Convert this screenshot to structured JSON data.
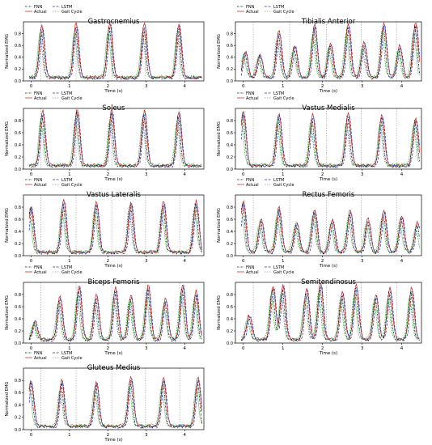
{
  "legend_labels": {
    "fnn": "FNN",
    "lstm": "LSTM",
    "actual": "Actual",
    "gait": "Gait Cycle"
  },
  "colors": {
    "fnn": "#1a1a1a",
    "lstm": "#2a3fa8",
    "actual": "#d0342c",
    "predicted_green": "#3a9a3a",
    "gait": "#9a9a9a",
    "frame": "#000000"
  },
  "chart_data": [
    {
      "type": "line",
      "title": "Gastrocnemius",
      "xlabel": "Time (s)",
      "ylabel": "Normalized EMG",
      "xlim": [
        -0.2,
        4.5
      ],
      "ylim": [
        0,
        1
      ],
      "xticks": [
        0,
        1,
        2,
        3,
        4
      ],
      "yticks": [
        0,
        0.2,
        0.4,
        0.6,
        0.8
      ],
      "gait_cycle_x": [
        0.25,
        1.17,
        2.1,
        2.98,
        3.87
      ],
      "peaks": [
        0.28,
        1.17,
        2.05,
        2.95,
        3.85
      ],
      "peak_heights": [
        0.88,
        0.93,
        0.95,
        0.93,
        0.92
      ],
      "legend": "top-left"
    },
    {
      "type": "line",
      "title": "Tibialis Anterior",
      "xlabel": "Time (s)",
      "ylabel": "Normalized EMG",
      "xlim": [
        -0.2,
        4.5
      ],
      "ylim": [
        0,
        1
      ],
      "xticks": [
        0,
        1,
        2,
        3,
        4
      ],
      "yticks": [
        0,
        0.2,
        0.4,
        0.6,
        0.8
      ],
      "gait_cycle_x": [
        0.25,
        1.17,
        2.1,
        2.98,
        3.87
      ],
      "peaks": [
        0.05,
        0.42,
        0.9,
        1.3,
        1.8,
        2.2,
        2.65,
        3.05,
        3.55,
        3.95,
        4.35
      ],
      "peak_heights": [
        0.45,
        0.4,
        0.8,
        0.55,
        0.9,
        0.6,
        0.92,
        0.6,
        0.95,
        0.55,
        0.95
      ],
      "legend": "top-left"
    },
    {
      "type": "line",
      "title": "Soleus",
      "xlabel": "Time (s)",
      "ylabel": "Normalized EMG",
      "xlim": [
        -0.2,
        4.5
      ],
      "ylim": [
        0,
        1
      ],
      "xticks": [
        0,
        1,
        2,
        3,
        4
      ],
      "yticks": [
        0,
        0.2,
        0.4,
        0.6,
        0.8
      ],
      "gait_cycle_x": [
        0.25,
        1.17,
        2.1,
        2.98,
        3.87
      ],
      "peaks": [
        0.3,
        1.2,
        2.1,
        2.95,
        3.85
      ],
      "peak_heights": [
        0.92,
        0.95,
        0.93,
        0.92,
        0.9
      ],
      "legend": "top-left"
    },
    {
      "type": "line",
      "title": "Vastus Medialis",
      "xlabel": "Time (s)",
      "ylabel": "Normalized EMG",
      "xlim": [
        -0.2,
        4.5
      ],
      "ylim": [
        0,
        1
      ],
      "xticks": [
        0,
        1,
        2,
        3,
        4
      ],
      "yticks": [
        0,
        0.2,
        0.4,
        0.6,
        0.8
      ],
      "gait_cycle_x": [
        0.25,
        1.17,
        2.1,
        2.98,
        3.87
      ],
      "peaks": [
        0.0,
        0.9,
        1.75,
        2.65,
        3.5,
        4.35
      ],
      "peak_heights": [
        0.9,
        0.88,
        0.85,
        0.88,
        0.85,
        0.8
      ],
      "legend": "top-left"
    },
    {
      "type": "line",
      "title": "Vastus Lateralis",
      "xlabel": "Time (s)",
      "ylabel": "Normalized EMG",
      "xlim": [
        -0.2,
        4.5
      ],
      "ylim": [
        0,
        1
      ],
      "xticks": [
        0,
        1,
        2,
        3,
        4
      ],
      "yticks": [
        0,
        0.2,
        0.4,
        0.6,
        0.8
      ],
      "gait_cycle_x": [
        0.25,
        1.17,
        2.1,
        2.98,
        3.87
      ],
      "peaks": [
        0.0,
        0.85,
        1.7,
        2.6,
        3.45,
        4.3
      ],
      "peak_heights": [
        0.78,
        0.88,
        0.85,
        0.85,
        0.85,
        0.85
      ],
      "legend": "top-left"
    },
    {
      "type": "line",
      "title": "Rectus Femoris",
      "xlabel": "Time (s)",
      "ylabel": "Normalized EMG",
      "xlim": [
        -0.2,
        4.5
      ],
      "ylim": [
        0,
        1
      ],
      "xticks": [
        0,
        1,
        2,
        3,
        4
      ],
      "yticks": [
        0,
        0.2,
        0.4,
        0.6,
        0.8
      ],
      "gait_cycle_x": [
        0.25,
        1.17,
        2.1,
        2.98,
        3.87
      ],
      "peaks": [
        0.0,
        0.45,
        0.9,
        1.35,
        1.8,
        2.25,
        2.7,
        3.15,
        3.55,
        4.0,
        4.4
      ],
      "peak_heights": [
        0.85,
        0.55,
        0.75,
        0.5,
        0.72,
        0.55,
        0.7,
        0.55,
        0.7,
        0.6,
        0.5
      ],
      "legend": "top-left"
    },
    {
      "type": "line",
      "title": "Biceps Femoris",
      "xlabel": "Time (s)",
      "ylabel": "Normalized EMG",
      "xlim": [
        -0.2,
        4.5
      ],
      "ylim": [
        0,
        1
      ],
      "xticks": [
        0,
        1,
        2,
        3,
        4
      ],
      "yticks": [
        0,
        0.2,
        0.4,
        0.6,
        0.8
      ],
      "gait_cycle_x": [
        0.25,
        1.17,
        2.1,
        2.98,
        3.87
      ],
      "peaks": [
        0.1,
        0.75,
        1.25,
        1.7,
        2.2,
        2.6,
        3.05,
        3.5,
        3.95,
        4.3
      ],
      "peak_heights": [
        0.3,
        0.72,
        0.9,
        0.75,
        0.88,
        0.75,
        0.9,
        0.7,
        0.92,
        0.8
      ],
      "legend": "top-left"
    },
    {
      "type": "line",
      "title": "Semitendinosus",
      "xlabel": "Time (s)",
      "ylabel": "Normalized EMG",
      "xlim": [
        -0.2,
        4.5
      ],
      "ylim": [
        0,
        1
      ],
      "xticks": [
        0,
        1,
        2,
        3,
        4
      ],
      "yticks": [
        0,
        0.2,
        0.4,
        0.6,
        0.8
      ],
      "gait_cycle_x": [
        0.25,
        1.17,
        2.1,
        2.98,
        3.87
      ],
      "peaks": [
        0.15,
        0.75,
        1.0,
        1.6,
        1.95,
        2.5,
        2.85,
        3.35,
        3.7,
        4.25
      ],
      "peak_heights": [
        0.4,
        0.9,
        0.92,
        0.85,
        0.95,
        0.8,
        0.9,
        0.75,
        0.85,
        0.85
      ],
      "legend": "top-left"
    },
    {
      "type": "line",
      "title": "Gluteus Medius",
      "xlabel": "Time (s)",
      "ylabel": "Normalized EMG",
      "xlim": [
        -0.2,
        4.5
      ],
      "ylim": [
        0,
        1
      ],
      "xticks": [
        0,
        1,
        2,
        3,
        4
      ],
      "yticks": [
        0,
        0.2,
        0.4,
        0.6,
        0.8
      ],
      "gait_cycle_x": [
        0.25,
        1.17,
        2.1,
        2.98,
        3.87
      ],
      "peaks": [
        0.0,
        0.8,
        1.7,
        2.6,
        3.45,
        4.35
      ],
      "peak_heights": [
        0.75,
        0.75,
        0.72,
        0.82,
        0.78,
        0.8
      ],
      "legend": "top-left"
    }
  ]
}
